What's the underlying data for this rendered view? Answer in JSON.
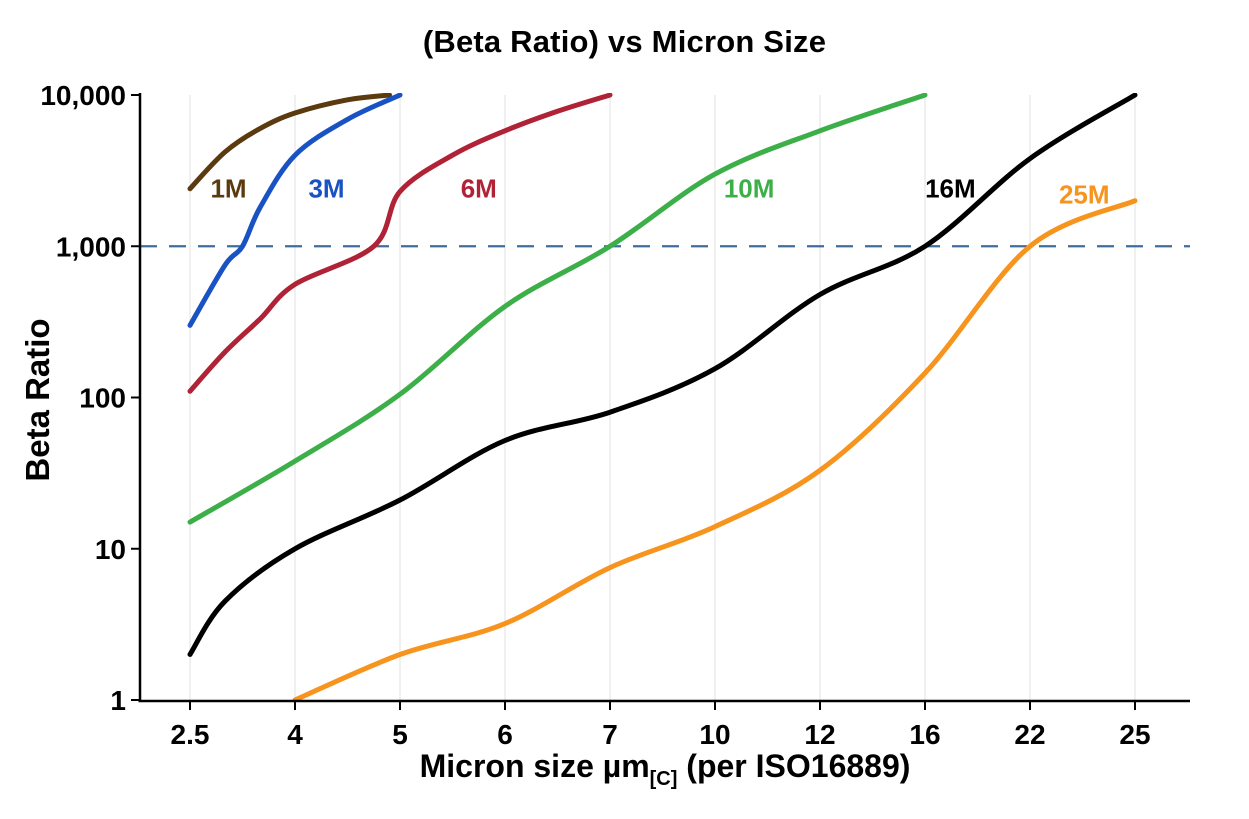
{
  "chart_data": {
    "type": "line",
    "title": "(Beta Ratio) vs Micron Size",
    "ylabel": "Beta Ratio",
    "xlabel": {
      "prefix": "Micron size µm",
      "subscript": "[C]",
      "suffix": " (per ISO16889)"
    },
    "x_scale": "categorical",
    "y_scale": "log",
    "ylim": [
      1,
      10000
    ],
    "x_categories": [
      2.5,
      4,
      5,
      6,
      7,
      10,
      12,
      16,
      22,
      25
    ],
    "x_tick_labels": [
      "2.5",
      "4",
      "5",
      "6",
      "7",
      "10",
      "12",
      "16",
      "22",
      "25"
    ],
    "y_ticks": [
      1,
      10,
      100,
      1000,
      10000
    ],
    "y_tick_labels": [
      "1",
      "10",
      "100",
      "1,000",
      "10,000"
    ],
    "grid": {
      "vertical": true,
      "horizontal": false,
      "color": "#e0e0e0"
    },
    "threshold_line": {
      "value": 1000,
      "style": "dashed",
      "color": "#3f6e9e"
    },
    "legend_position": "inline-labels",
    "series": [
      {
        "name": "1M",
        "color": "#5a3a0e",
        "label": {
          "text": "1M",
          "x": 3.05,
          "y": 2400
        },
        "points": [
          [
            2.5,
            2400
          ],
          [
            3,
            4200
          ],
          [
            3.5,
            6000
          ],
          [
            4,
            7600
          ],
          [
            4.5,
            9300
          ],
          [
            4.9,
            10000
          ]
        ]
      },
      {
        "name": "3M",
        "color": "#1952c2",
        "label": {
          "text": "3M",
          "x": 4.3,
          "y": 2400
        },
        "points": [
          [
            2.5,
            300
          ],
          [
            3,
            750
          ],
          [
            3.25,
            1000
          ],
          [
            3.5,
            1800
          ],
          [
            4,
            4000
          ],
          [
            4.5,
            6900
          ],
          [
            5,
            10000
          ]
        ]
      },
      {
        "name": "6M",
        "color": "#b02236",
        "label": {
          "text": "6M",
          "x": 5.75,
          "y": 2400
        },
        "points": [
          [
            2.5,
            110
          ],
          [
            3,
            200
          ],
          [
            3.5,
            330
          ],
          [
            4,
            560
          ],
          [
            4.75,
            1000
          ],
          [
            5,
            2300
          ],
          [
            5.5,
            4000
          ],
          [
            6,
            5800
          ],
          [
            6.5,
            7800
          ],
          [
            7,
            10000
          ]
        ]
      },
      {
        "name": "10M",
        "color": "#3daf49",
        "label": {
          "text": "10M",
          "x": 10.65,
          "y": 2400
        },
        "points": [
          [
            2.5,
            15
          ],
          [
            4,
            38
          ],
          [
            5,
            105
          ],
          [
            6,
            400
          ],
          [
            7,
            1000
          ],
          [
            10,
            3000
          ],
          [
            12,
            5800
          ],
          [
            16,
            10000
          ]
        ]
      },
      {
        "name": "16M",
        "color": "#000000",
        "label": {
          "text": "16M",
          "x": 17.45,
          "y": 2400
        },
        "points": [
          [
            2.5,
            2
          ],
          [
            3,
            4.5
          ],
          [
            4,
            10
          ],
          [
            5,
            21
          ],
          [
            6,
            52
          ],
          [
            7,
            80
          ],
          [
            10,
            155
          ],
          [
            12,
            480
          ],
          [
            16,
            1000
          ],
          [
            22,
            3800
          ],
          [
            25,
            10000
          ]
        ]
      },
      {
        "name": "25M",
        "color": "#f7941e",
        "label": {
          "text": "25M",
          "x": 23.55,
          "y": 2200
        },
        "points": [
          [
            4,
            1
          ],
          [
            5,
            2
          ],
          [
            6,
            3.2
          ],
          [
            7,
            7.5
          ],
          [
            10,
            14
          ],
          [
            12,
            33
          ],
          [
            16,
            145
          ],
          [
            22,
            1000
          ],
          [
            25,
            2000
          ]
        ]
      }
    ]
  }
}
